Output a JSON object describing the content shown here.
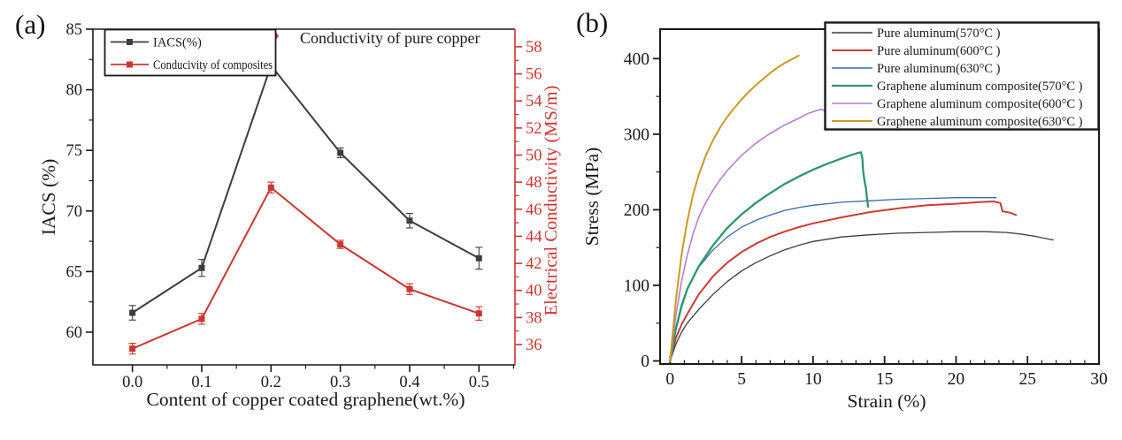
{
  "panels": {
    "a": {
      "label": "(a)"
    },
    "b": {
      "label": "(b)"
    }
  },
  "chart_data": [
    {
      "type": "line",
      "panel": "a",
      "x_label": "Content of copper coated graphene(wt.%)",
      "x_tick_labels": [
        "0.0",
        "0.1",
        "0.2",
        "0.3",
        "0.4",
        "0.5"
      ],
      "x_values": [
        0.0,
        0.1,
        0.2,
        0.3,
        0.4,
        0.5
      ],
      "x_minor_ticks": [
        0.05,
        0.15,
        0.25,
        0.35,
        0.45,
        0.55
      ],
      "x_range": [
        -0.057,
        0.552
      ],
      "y_left": {
        "label": "IACS (%)",
        "ticks": [
          60,
          65,
          70,
          75,
          80,
          85
        ],
        "minor_ticks": [
          62.5,
          67.5,
          72.5,
          77.5,
          82.5
        ],
        "range": [
          57.3,
          85.0
        ],
        "color": "#1a1a1a"
      },
      "y_right": {
        "label": "Electrical Conductivity (MS/m)",
        "ticks": [
          36,
          38,
          40,
          42,
          44,
          46,
          48,
          50,
          52,
          54,
          56,
          58
        ],
        "minor_ticks": [
          37,
          39,
          41,
          43,
          45,
          47,
          49,
          51,
          53,
          55,
          57
        ],
        "range": [
          34.5,
          59.3
        ],
        "color": "#cd3531"
      },
      "legend": {
        "position": "top-left"
      },
      "series": [
        {
          "name": "IACS(%)",
          "axis": "left",
          "color": "#3d3d3d",
          "marker": "square",
          "values": [
            61.6,
            65.3,
            82.0,
            74.8,
            69.2,
            66.1
          ],
          "errors": [
            0.6,
            0.7,
            0.5,
            0.4,
            0.6,
            0.9
          ]
        },
        {
          "name": "Conducivity of composites",
          "axis": "right",
          "color": "#cd3531",
          "marker": "square",
          "values": [
            35.7,
            37.9,
            47.6,
            43.4,
            40.1,
            38.3
          ],
          "errors": [
            0.4,
            0.4,
            0.4,
            0.3,
            0.4,
            0.5
          ]
        }
      ],
      "annotation": {
        "text": "Conductivity of pure copper",
        "marker": "diamond",
        "color": "#cd3531",
        "x": 0.205,
        "y_right": 58.8
      }
    },
    {
      "type": "line",
      "panel": "b",
      "x_label": "Strain (%)",
      "y_label": "Stress (MPa)",
      "x_ticks": [
        0,
        5,
        10,
        15,
        20,
        25,
        30
      ],
      "x_minor_step": 1,
      "x_range": [
        -0.7,
        30
      ],
      "y_ticks": [
        0,
        100,
        200,
        300,
        400
      ],
      "y_minor_step": 50,
      "y_range": [
        -4.1,
        439
      ],
      "legend": {
        "position": "top-right"
      },
      "series": [
        {
          "name": "Pure aluminum(570°C )",
          "color": "#3d3d3d",
          "width": 1.3,
          "points": [
            [
              0,
              0
            ],
            [
              0.4,
              22
            ],
            [
              0.8,
              38
            ],
            [
              1.2,
              50
            ],
            [
              2,
              68
            ],
            [
              3,
              88
            ],
            [
              4,
              105
            ],
            [
              5,
              119
            ],
            [
              6,
              130
            ],
            [
              7,
              139
            ],
            [
              8,
              147
            ],
            [
              9,
              153
            ],
            [
              10,
              158
            ],
            [
              12,
              164
            ],
            [
              14,
              167
            ],
            [
              16,
              169
            ],
            [
              18,
              170
            ],
            [
              20,
              171
            ],
            [
              22,
              171
            ],
            [
              23.5,
              170
            ],
            [
              24.5,
              168
            ],
            [
              25.5,
              165
            ],
            [
              26.8,
              160
            ]
          ]
        },
        {
          "name": "Pure aluminum(600°C )",
          "color": "#ce3a35",
          "width": 2.0,
          "points": [
            [
              0,
              0
            ],
            [
              0.4,
              30
            ],
            [
              0.8,
              48
            ],
            [
              1.2,
              62
            ],
            [
              2,
              88
            ],
            [
              3,
              112
            ],
            [
              4,
              130
            ],
            [
              5,
              144
            ],
            [
              6,
              155
            ],
            [
              7,
              164
            ],
            [
              8,
              171
            ],
            [
              9,
              177
            ],
            [
              10,
              182
            ],
            [
              12,
              190
            ],
            [
              14,
              197
            ],
            [
              16,
              202
            ],
            [
              18,
              206
            ],
            [
              20,
              208
            ],
            [
              21.5,
              210
            ],
            [
              22.6,
              211
            ],
            [
              23.1,
              209
            ],
            [
              23.25,
              198
            ],
            [
              23.8,
              196
            ],
            [
              24.2,
              193
            ]
          ]
        },
        {
          "name": "Pure aluminum(630°C )",
          "color": "#3a68ae",
          "width": 1.3,
          "points": [
            [
              0,
              0
            ],
            [
              0.4,
              45
            ],
            [
              0.8,
              75
            ],
            [
              1.2,
              95
            ],
            [
              2,
              124
            ],
            [
              3,
              147
            ],
            [
              4,
              164
            ],
            [
              5,
              177
            ],
            [
              6,
              186
            ],
            [
              7,
              193
            ],
            [
              8,
              199
            ],
            [
              9,
              203
            ],
            [
              10,
              206
            ],
            [
              12,
              210
            ],
            [
              14,
              212
            ],
            [
              16,
              214
            ],
            [
              18,
              215
            ],
            [
              20,
              216
            ],
            [
              21.5,
              216
            ],
            [
              22.8,
              216
            ]
          ]
        },
        {
          "name": "Graphene aluminum composite(570°C )",
          "color": "#2b9868",
          "width": 2.3,
          "points": [
            [
              0,
              0
            ],
            [
              0.4,
              42
            ],
            [
              0.8,
              72
            ],
            [
              1.2,
              95
            ],
            [
              2,
              125
            ],
            [
              3,
              153
            ],
            [
              4,
              176
            ],
            [
              5,
              194
            ],
            [
              6,
              209
            ],
            [
              7,
              222
            ],
            [
              8,
              234
            ],
            [
              9,
              244
            ],
            [
              10,
              253
            ],
            [
              11,
              261
            ],
            [
              12,
              268
            ],
            [
              12.6,
              272
            ],
            [
              13.1,
              275
            ],
            [
              13.35,
              276
            ],
            [
              13.45,
              268
            ],
            [
              13.5,
              252
            ],
            [
              13.6,
              238
            ],
            [
              13.7,
              228
            ],
            [
              13.75,
              218
            ],
            [
              13.85,
              204
            ]
          ]
        },
        {
          "name": "Graphene aluminum composite(600°C )",
          "color": "#b77dd6",
          "width": 1.6,
          "points": [
            [
              0,
              0
            ],
            [
              0.4,
              60
            ],
            [
              0.8,
              105
            ],
            [
              1.2,
              140
            ],
            [
              1.6,
              168
            ],
            [
              2,
              190
            ],
            [
              2.5,
              210
            ],
            [
              3,
              226
            ],
            [
              3.5,
              240
            ],
            [
              4,
              252
            ],
            [
              5,
              272
            ],
            [
              6,
              288
            ],
            [
              7,
              301
            ],
            [
              8,
              312
            ],
            [
              9,
              321
            ],
            [
              9.6,
              327
            ],
            [
              10.2,
              331
            ],
            [
              10.6,
              333
            ],
            [
              10.8,
              331
            ],
            [
              10.9,
              322
            ],
            [
              11.1,
              313
            ]
          ]
        },
        {
          "name": "Graphene aluminum composite(630°C )",
          "color": "#c89b20",
          "width": 2.0,
          "points": [
            [
              0,
              0
            ],
            [
              0.4,
              80
            ],
            [
              0.8,
              140
            ],
            [
              1.2,
              185
            ],
            [
              1.6,
              220
            ],
            [
              2,
              246
            ],
            [
              2.5,
              272
            ],
            [
              3,
              292
            ],
            [
              3.5,
              309
            ],
            [
              4,
              323
            ],
            [
              4.5,
              335
            ],
            [
              5,
              346
            ],
            [
              5.5,
              356
            ],
            [
              6,
              365
            ],
            [
              6.5,
              373
            ],
            [
              7,
              381
            ],
            [
              7.5,
              388
            ],
            [
              8,
              394
            ],
            [
              8.4,
              398
            ],
            [
              8.7,
              401
            ],
            [
              9,
              404
            ]
          ]
        }
      ]
    }
  ]
}
